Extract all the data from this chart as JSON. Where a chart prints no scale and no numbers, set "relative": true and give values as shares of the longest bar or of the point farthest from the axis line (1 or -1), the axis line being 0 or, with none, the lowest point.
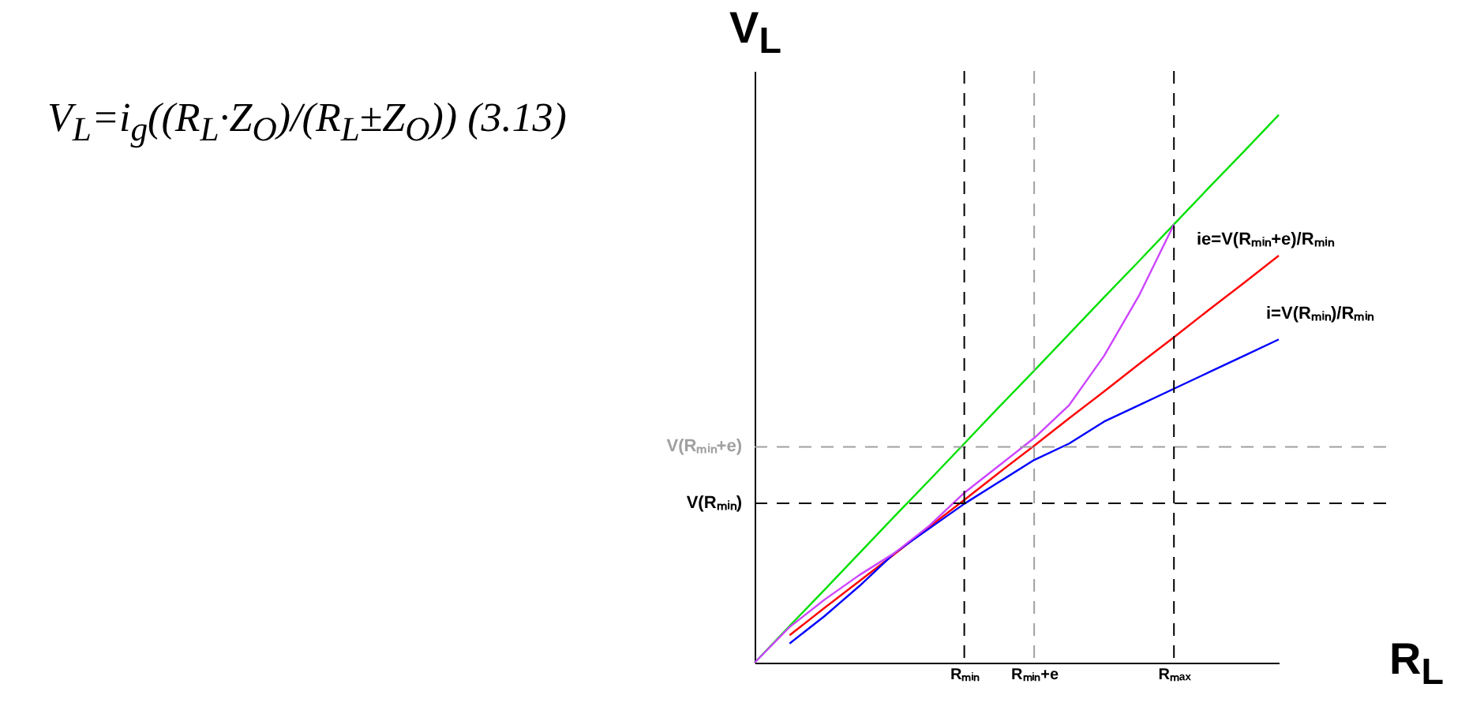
{
  "chart_data": {
    "type": "line",
    "relative": true,
    "xlabel": "R$_{L}$",
    "ylabel": "V$_{L}$",
    "categories": [
      null,
      null,
      null,
      null,
      null,
      null,
      "Rₘᵢₙ",
      null,
      "Rₘᵢₙ+e",
      null,
      null,
      null,
      "Rₘₐₓ",
      null,
      null,
      null
    ],
    "series": [
      {
        "color": "#00e000",
        "values": [
          0,
          0.067,
          0.133,
          0.2,
          0.267,
          0.333,
          0.4,
          0.467,
          0.533,
          0.6,
          0.667,
          0.733,
          0.8,
          0.867,
          0.933,
          1
        ]
      },
      {
        "color": "#ff0000",
        "values": [
          null,
          0.05,
          0.1,
          0.149,
          0.198,
          0.248,
          0.297,
          0.347,
          0.396,
          0.446,
          0.495,
          0.545,
          0.594,
          0.644,
          0.693,
          0.743
        ]
      },
      {
        "color": "#0000ff",
        "values": [
          null,
          0.035,
          0.085,
          0.14,
          0.2,
          0.245,
          0.29,
          0.33,
          0.37,
          0.4,
          0.44,
          0.47,
          0.5,
          0.53,
          0.56,
          0.59
        ]
      },
      {
        "color": "#cc44ff",
        "values": [
          0,
          0.065,
          0.115,
          0.16,
          0.2,
          0.25,
          0.31,
          0.36,
          0.41,
          0.47,
          0.56,
          0.67,
          0.8,
          null,
          null,
          null
        ]
      }
    ],
    "ref_lines": [
      {
        "axis": "y",
        "value": 0.394,
        "label": "V(Rₘᵢₙ+e)",
        "color": "#a0a0a0",
        "line_style": "dashed"
      },
      {
        "axis": "y",
        "value": 0.291,
        "label": "V(Rₘᵢₙ)",
        "color": "#000000",
        "line_style": "dashed"
      },
      {
        "axis": "x",
        "value": "Rₘᵢₙ",
        "color": "#000000",
        "line_style": "dashed"
      },
      {
        "axis": "x",
        "value": "Rₘᵢₙ+e",
        "color": "#a0a0a0",
        "line_style": "dashed"
      },
      {
        "axis": "x",
        "value": "Rₘₐₓ",
        "color": "#000000",
        "line_style": "dashed"
      }
    ],
    "annotations": [
      "V$_{L}$=i$_{g}$((R$_{L}$·Z$_{O}$)/(R$_{L}$±Z$_{O}$)) (3.13)",
      "ie=V(Rₘᵢₙ+e)/Rₘᵢₙ",
      "i=V(Rₘᵢₙ)/Rₘᵢₙ"
    ],
    "grid": false,
    "marker": "none",
    "line_style": "solid"
  }
}
